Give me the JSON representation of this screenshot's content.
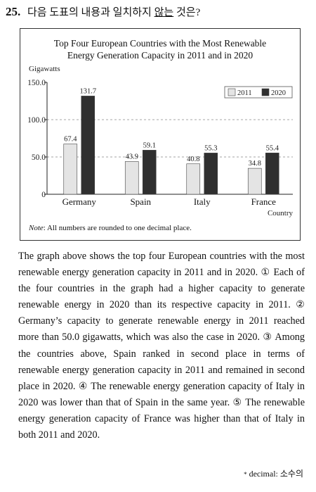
{
  "question": {
    "number": "25.",
    "prompt_before": "다음 도표의 내용과 일치하지",
    "prompt_underlined": "않는",
    "prompt_after": "것은?"
  },
  "chart_data": {
    "type": "bar",
    "title_line1": "Top Four European Countries with the Most Renewable",
    "title_line2": "Energy Generation Capacity in 2011 and in 2020",
    "ylabel": "Gigawatts",
    "xlabel": "Country",
    "categories": [
      "Germany",
      "Spain",
      "Italy",
      "France"
    ],
    "series": [
      {
        "name": "2011",
        "values": [
          67.4,
          43.9,
          40.8,
          34.8
        ],
        "color": "#e4e4e4"
      },
      {
        "name": "2020",
        "values": [
          131.7,
          59.1,
          55.3,
          55.4
        ],
        "color": "#2f2f2f"
      }
    ],
    "value_labels": {
      "2011": [
        "67.4",
        "43.9",
        "40.8",
        "34.8"
      ],
      "2020": [
        "131.7",
        "59.1",
        "55.3",
        "55.4"
      ]
    },
    "yticks": [
      "0",
      "50.0",
      "100.0",
      "150.0"
    ],
    "ytick_values": [
      0,
      50,
      100,
      150
    ],
    "ylim": [
      0,
      150
    ],
    "grid": "dashed horizontal at 50.0 and 100.0",
    "legend_position": "top-right"
  },
  "note": {
    "label": "Note",
    "text": ": All numbers are rounded to one decimal place."
  },
  "passage": "The graph above shows the top four European countries with the most renewable energy generation capacity in 2011 and in 2020. ① Each of the four countries in the graph had a higher capacity to generate renewable energy in 2020 than its respective capacity in 2011. ② Germany’s capacity to generate renewable energy in 2011 reached more than 50.0 gigawatts, which was also the case in 2020. ③ Among the countries above, Spain ranked in second place in terms of renewable energy generation capacity in 2011 and remained in second place in 2020. ④ The renewable energy generation capacity of Italy in 2020 was lower than that of Spain in the same year. ⑤ The renewable energy generation capacity of France was higher than that of Italy in both 2011 and 2020.",
  "footnote": {
    "star": "*",
    "text": "decimal: 소수의"
  }
}
